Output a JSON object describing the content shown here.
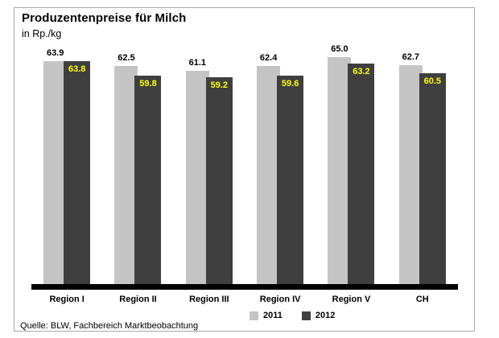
{
  "header": {
    "title": "Produzentenpreise für Milch",
    "subtitle": "in Rp./kg"
  },
  "chart_data": {
    "type": "bar",
    "title": "Produzentenpreise für Milch",
    "ylabel": "in Rp./kg",
    "categories": [
      "Region I",
      "Region II",
      "Region III",
      "Region IV",
      "Region V",
      "CH"
    ],
    "series": [
      {
        "name": "2011",
        "values": [
          63.9,
          62.5,
          61.1,
          62.4,
          65.0,
          62.7
        ],
        "color": "#c4c4c4",
        "label_color": "#000000",
        "label_position": "above"
      },
      {
        "name": "2012",
        "values": [
          63.8,
          59.8,
          59.2,
          59.6,
          63.2,
          60.5
        ],
        "color": "#3f3f3f",
        "label_color": "#ffff00",
        "label_position": "inside-top"
      }
    ],
    "ylim": [
      0,
      65
    ],
    "grid": false,
    "legend_position": "bottom",
    "value_label_decimals": 1,
    "axis_line_color": "#000000"
  },
  "footer": {
    "source": "Quelle: BLW, Fachbereich Marktbeobachtung"
  }
}
